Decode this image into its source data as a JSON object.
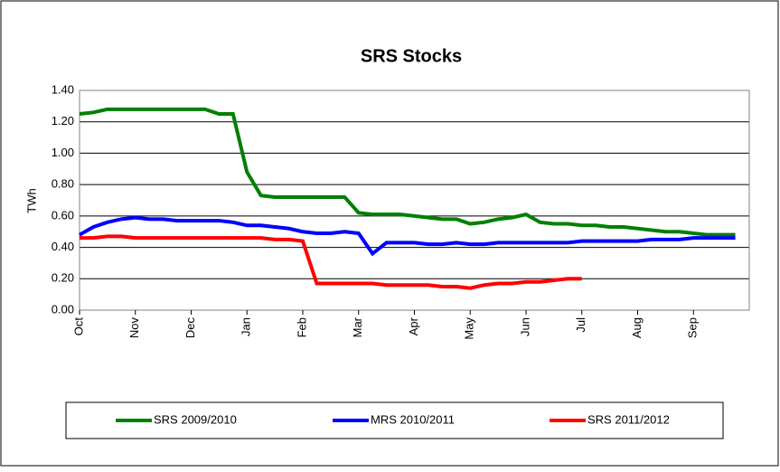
{
  "chart_data": {
    "type": "line",
    "title": "SRS Stocks",
    "y_label": "TWh",
    "categories": [
      "Oct",
      null,
      null,
      null,
      "Nov",
      null,
      null,
      null,
      "Dec",
      null,
      null,
      null,
      "Jan",
      null,
      null,
      null,
      "Feb",
      null,
      null,
      null,
      "Mar",
      null,
      null,
      null,
      "Apr",
      null,
      null,
      null,
      "May",
      null,
      null,
      null,
      "Jun",
      null,
      null,
      null,
      "Jul",
      null,
      null,
      null,
      "Aug",
      null,
      null,
      null,
      "Sep",
      null,
      null,
      null
    ],
    "series": [
      {
        "name": "SRS 2009/2010",
        "color": "#008000",
        "values": [
          1.25,
          1.26,
          1.28,
          1.28,
          1.28,
          1.28,
          1.28,
          1.28,
          1.28,
          1.28,
          1.25,
          1.25,
          0.88,
          0.73,
          0.72,
          0.72,
          0.72,
          0.72,
          0.72,
          0.72,
          0.62,
          0.61,
          0.61,
          0.61,
          0.6,
          0.59,
          0.58,
          0.58,
          0.55,
          0.56,
          0.58,
          0.59,
          0.61,
          0.56,
          0.55,
          0.55,
          0.54,
          0.54,
          0.53,
          0.53,
          0.52,
          0.51,
          0.5,
          0.5,
          0.49,
          0.48,
          0.48,
          0.48
        ]
      },
      {
        "name": "MRS 2010/2011",
        "color": "#0000ff",
        "values": [
          0.48,
          0.53,
          0.56,
          0.58,
          0.59,
          0.58,
          0.58,
          0.57,
          0.57,
          0.57,
          0.57,
          0.56,
          0.54,
          0.54,
          0.53,
          0.52,
          0.5,
          0.49,
          0.49,
          0.5,
          0.49,
          0.36,
          0.43,
          0.43,
          0.43,
          0.42,
          0.42,
          0.43,
          0.42,
          0.42,
          0.43,
          0.43,
          0.43,
          0.43,
          0.43,
          0.43,
          0.44,
          0.44,
          0.44,
          0.44,
          0.44,
          0.45,
          0.45,
          0.45,
          0.46,
          0.46,
          0.46,
          0.46
        ]
      },
      {
        "name": "SRS 2011/2012",
        "color": "#ff0000",
        "values": [
          0.46,
          0.46,
          0.47,
          0.47,
          0.46,
          0.46,
          0.46,
          0.46,
          0.46,
          0.46,
          0.46,
          0.46,
          0.46,
          0.46,
          0.45,
          0.45,
          0.44,
          0.17,
          0.17,
          0.17,
          0.17,
          0.17,
          0.16,
          0.16,
          0.16,
          0.16,
          0.15,
          0.15,
          0.14,
          0.16,
          0.17,
          0.17,
          0.18,
          0.18,
          0.19,
          0.2,
          0.2,
          null,
          null,
          null,
          null,
          null,
          null,
          null,
          null,
          null,
          null,
          null
        ]
      }
    ],
    "ylim": [
      0,
      1.4
    ],
    "yticks": [
      {
        "value": 0,
        "label": "0.00"
      },
      {
        "value": 0.2,
        "label": "0.20"
      },
      {
        "value": 0.4,
        "label": "0.40"
      },
      {
        "value": 0.6,
        "label": "0.60"
      },
      {
        "value": 0.8,
        "label": "0.80"
      },
      {
        "value": 1.0,
        "label": "1.00"
      },
      {
        "value": 1.2,
        "label": "1.20"
      },
      {
        "value": 1.4,
        "label": "1.40"
      }
    ],
    "grid": true,
    "legend": "bottom"
  }
}
